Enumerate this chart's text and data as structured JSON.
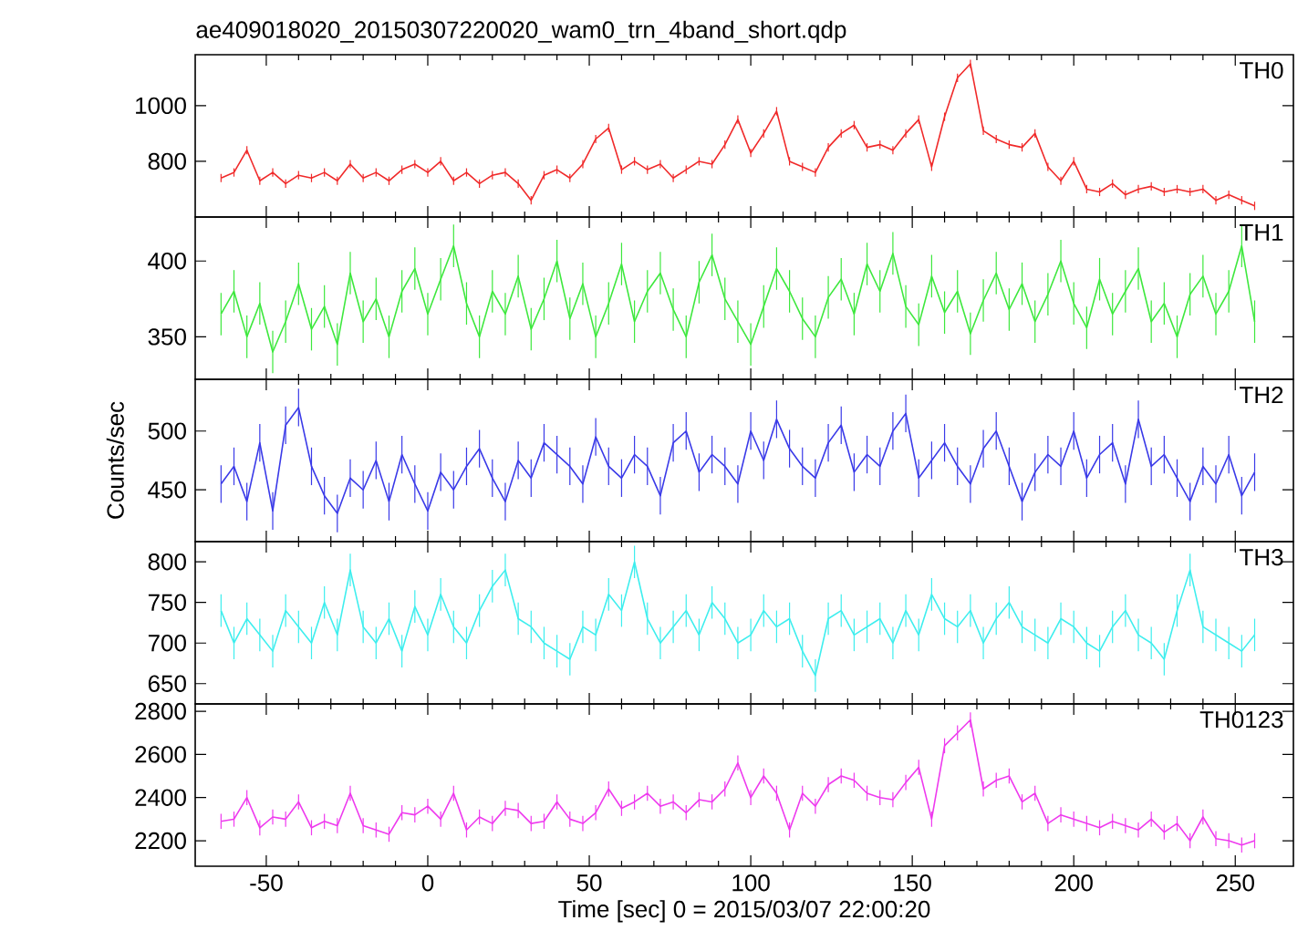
{
  "chart_data": [
    {
      "type": "line",
      "title": "ae409018020_20150307220020_wam0_trn_4band_short.qdp",
      "annotations": [
        "TH0"
      ],
      "color": "#f02a2a",
      "xlim": [
        -72,
        268
      ],
      "xticks": [
        -50,
        0,
        50,
        100,
        150,
        200,
        250
      ],
      "ylim": [
        600,
        1183
      ],
      "yticks": [
        800,
        1000
      ],
      "tick_labels": "y",
      "x": [
        -64,
        -60,
        -56,
        -52,
        -48,
        -44,
        -40,
        -36,
        -32,
        -28,
        -24,
        -20,
        -16,
        -12,
        -8,
        -4,
        0,
        4,
        8,
        12,
        16,
        20,
        24,
        28,
        32,
        36,
        40,
        44,
        48,
        52,
        56,
        60,
        64,
        68,
        72,
        76,
        80,
        84,
        88,
        92,
        96,
        100,
        104,
        108,
        112,
        116,
        120,
        124,
        128,
        132,
        136,
        140,
        144,
        148,
        152,
        156,
        160,
        164,
        168,
        172,
        176,
        180,
        184,
        188,
        192,
        196,
        200,
        204,
        208,
        212,
        216,
        220,
        224,
        228,
        232,
        236,
        240,
        244,
        248,
        252,
        256
      ],
      "values": [
        740,
        760,
        840,
        730,
        760,
        720,
        750,
        740,
        760,
        730,
        790,
        740,
        760,
        730,
        770,
        790,
        760,
        800,
        730,
        760,
        720,
        750,
        760,
        720,
        660,
        750,
        770,
        740,
        790,
        880,
        920,
        770,
        800,
        770,
        790,
        740,
        770,
        800,
        790,
        860,
        950,
        830,
        900,
        980,
        800,
        780,
        760,
        850,
        900,
        930,
        850,
        860,
        840,
        900,
        950,
        780,
        960,
        1100,
        1150,
        910,
        880,
        860,
        850,
        900,
        780,
        730,
        800,
        700,
        690,
        720,
        680,
        700,
        710,
        690,
        700,
        690,
        700,
        660,
        680,
        660,
        640
      ],
      "errors": [
        15,
        15,
        15,
        15,
        15,
        15,
        15,
        15,
        15,
        15,
        15,
        15,
        15,
        15,
        15,
        15,
        15,
        15,
        15,
        15,
        15,
        15,
        15,
        15,
        15,
        15,
        15,
        15,
        15,
        15,
        15,
        15,
        15,
        15,
        15,
        15,
        15,
        15,
        15,
        15,
        15,
        15,
        15,
        15,
        15,
        15,
        15,
        15,
        15,
        15,
        15,
        15,
        15,
        15,
        15,
        15,
        15,
        15,
        15,
        15,
        15,
        15,
        15,
        15,
        15,
        15,
        15,
        15,
        15,
        15,
        15,
        15,
        15,
        15,
        15,
        15,
        15,
        15,
        15,
        15,
        15
      ]
    },
    {
      "type": "line",
      "annotations": [
        "TH1"
      ],
      "color": "#3ee83e",
      "xlim": [
        -72,
        268
      ],
      "xticks": [
        -50,
        0,
        50,
        100,
        150,
        200,
        250
      ],
      "ylim": [
        322,
        429
      ],
      "yticks": [
        350,
        400
      ],
      "tick_labels": "y",
      "x": [
        -64,
        -60,
        -56,
        -52,
        -48,
        -44,
        -40,
        -36,
        -32,
        -28,
        -24,
        -20,
        -16,
        -12,
        -8,
        -4,
        0,
        4,
        8,
        12,
        16,
        20,
        24,
        28,
        32,
        36,
        40,
        44,
        48,
        52,
        56,
        60,
        64,
        68,
        72,
        76,
        80,
        84,
        88,
        92,
        96,
        100,
        104,
        108,
        112,
        116,
        120,
        124,
        128,
        132,
        136,
        140,
        144,
        148,
        152,
        156,
        160,
        164,
        168,
        172,
        176,
        180,
        184,
        188,
        192,
        196,
        200,
        204,
        208,
        212,
        216,
        220,
        224,
        228,
        232,
        236,
        240,
        244,
        248,
        252,
        256
      ],
      "values": [
        365,
        380,
        350,
        372,
        340,
        360,
        385,
        355,
        370,
        345,
        392,
        360,
        375,
        350,
        380,
        395,
        365,
        388,
        410,
        372,
        350,
        380,
        365,
        390,
        355,
        375,
        400,
        362,
        385,
        350,
        372,
        398,
        360,
        380,
        392,
        368,
        350,
        386,
        404,
        375,
        360,
        345,
        370,
        395,
        380,
        362,
        350,
        376,
        388,
        365,
        398,
        380,
        405,
        370,
        358,
        390,
        366,
        380,
        352,
        374,
        392,
        368,
        385,
        360,
        378,
        400,
        372,
        356,
        388,
        365,
        380,
        395,
        360,
        372,
        350,
        378,
        390,
        365,
        380,
        410,
        360
      ],
      "errors": [
        14,
        14,
        14,
        14,
        14,
        14,
        14,
        14,
        14,
        14,
        14,
        14,
        14,
        14,
        14,
        14,
        14,
        14,
        14,
        14,
        14,
        14,
        14,
        14,
        14,
        14,
        14,
        14,
        14,
        14,
        14,
        14,
        14,
        14,
        14,
        14,
        14,
        14,
        14,
        14,
        14,
        14,
        14,
        14,
        14,
        14,
        14,
        14,
        14,
        14,
        14,
        14,
        14,
        14,
        14,
        14,
        14,
        14,
        14,
        14,
        14,
        14,
        14,
        14,
        14,
        14,
        14,
        14,
        14,
        14,
        14,
        14,
        14,
        14,
        14,
        14,
        14,
        14,
        14,
        14,
        14
      ]
    },
    {
      "type": "line",
      "annotations": [
        "TH2"
      ],
      "ylabel": "Counts/sec",
      "color": "#3a3ae8",
      "xlim": [
        -72,
        268
      ],
      "xticks": [
        -50,
        0,
        50,
        100,
        150,
        200,
        250
      ],
      "ylim": [
        406,
        544
      ],
      "yticks": [
        450,
        500
      ],
      "tick_labels": "y",
      "x": [
        -64,
        -60,
        -56,
        -52,
        -48,
        -44,
        -40,
        -36,
        -32,
        -28,
        -24,
        -20,
        -16,
        -12,
        -8,
        -4,
        0,
        4,
        8,
        12,
        16,
        20,
        24,
        28,
        32,
        36,
        40,
        44,
        48,
        52,
        56,
        60,
        64,
        68,
        72,
        76,
        80,
        84,
        88,
        92,
        96,
        100,
        104,
        108,
        112,
        116,
        120,
        124,
        128,
        132,
        136,
        140,
        144,
        148,
        152,
        156,
        160,
        164,
        168,
        172,
        176,
        180,
        184,
        188,
        192,
        196,
        200,
        204,
        208,
        212,
        216,
        220,
        224,
        228,
        232,
        236,
        240,
        244,
        248,
        252,
        256
      ],
      "values": [
        455,
        470,
        440,
        490,
        432,
        505,
        520,
        470,
        445,
        430,
        460,
        450,
        475,
        440,
        480,
        455,
        432,
        465,
        450,
        470,
        485,
        460,
        440,
        475,
        460,
        490,
        480,
        470,
        455,
        495,
        470,
        460,
        480,
        470,
        445,
        490,
        500,
        465,
        480,
        470,
        455,
        500,
        475,
        510,
        485,
        470,
        460,
        490,
        505,
        465,
        480,
        470,
        500,
        515,
        460,
        475,
        490,
        470,
        455,
        485,
        500,
        470,
        440,
        465,
        480,
        470,
        500,
        460,
        480,
        490,
        455,
        510,
        470,
        480,
        460,
        440,
        470,
        455,
        480,
        445,
        465
      ],
      "errors": [
        16,
        16,
        16,
        16,
        16,
        16,
        16,
        16,
        16,
        16,
        16,
        16,
        16,
        16,
        16,
        16,
        16,
        16,
        16,
        16,
        16,
        16,
        16,
        16,
        16,
        16,
        16,
        16,
        16,
        16,
        16,
        16,
        16,
        16,
        16,
        16,
        16,
        16,
        16,
        16,
        16,
        16,
        16,
        16,
        16,
        16,
        16,
        16,
        16,
        16,
        16,
        16,
        16,
        16,
        16,
        16,
        16,
        16,
        16,
        16,
        16,
        16,
        16,
        16,
        16,
        16,
        16,
        16,
        16,
        16,
        16,
        16,
        16,
        16,
        16,
        16,
        16,
        16,
        16,
        16,
        16
      ]
    },
    {
      "type": "line",
      "annotations": [
        "TH3"
      ],
      "color": "#3eeeee",
      "xlim": [
        -72,
        268
      ],
      "xticks": [
        -50,
        0,
        50,
        100,
        150,
        200,
        250
      ],
      "ylim": [
        625,
        825
      ],
      "yticks": [
        650,
        700,
        750,
        800
      ],
      "tick_labels": "y",
      "x": [
        -64,
        -60,
        -56,
        -52,
        -48,
        -44,
        -40,
        -36,
        -32,
        -28,
        -24,
        -20,
        -16,
        -12,
        -8,
        -4,
        0,
        4,
        8,
        12,
        16,
        20,
        24,
        28,
        32,
        36,
        40,
        44,
        48,
        52,
        56,
        60,
        64,
        68,
        72,
        76,
        80,
        84,
        88,
        92,
        96,
        100,
        104,
        108,
        112,
        116,
        120,
        124,
        128,
        132,
        136,
        140,
        144,
        148,
        152,
        156,
        160,
        164,
        168,
        172,
        176,
        180,
        184,
        188,
        192,
        196,
        200,
        204,
        208,
        212,
        216,
        220,
        224,
        228,
        232,
        236,
        240,
        244,
        248,
        252,
        256
      ],
      "values": [
        740,
        700,
        730,
        710,
        690,
        740,
        720,
        700,
        750,
        710,
        790,
        720,
        700,
        730,
        690,
        745,
        710,
        760,
        720,
        700,
        740,
        770,
        790,
        730,
        720,
        700,
        690,
        680,
        720,
        710,
        760,
        740,
        800,
        730,
        700,
        720,
        740,
        710,
        750,
        730,
        700,
        710,
        740,
        720,
        730,
        690,
        660,
        730,
        740,
        710,
        720,
        730,
        700,
        740,
        710,
        760,
        730,
        720,
        740,
        700,
        730,
        750,
        720,
        710,
        700,
        730,
        720,
        700,
        690,
        720,
        740,
        710,
        700,
        680,
        740,
        790,
        720,
        710,
        700,
        690,
        710
      ],
      "errors": [
        20,
        20,
        20,
        20,
        20,
        20,
        20,
        20,
        20,
        20,
        20,
        20,
        20,
        20,
        20,
        20,
        20,
        20,
        20,
        20,
        20,
        20,
        20,
        20,
        20,
        20,
        20,
        20,
        20,
        20,
        20,
        20,
        20,
        20,
        20,
        20,
        20,
        20,
        20,
        20,
        20,
        20,
        20,
        20,
        20,
        20,
        20,
        20,
        20,
        20,
        20,
        20,
        20,
        20,
        20,
        20,
        20,
        20,
        20,
        20,
        20,
        20,
        20,
        20,
        20,
        20,
        20,
        20,
        20,
        20,
        20,
        20,
        20,
        20,
        20,
        20,
        20,
        20,
        20,
        20,
        20
      ]
    },
    {
      "type": "line",
      "annotations": [
        "TH0123"
      ],
      "xlabel": "Time [sec] 0 = 2015/03/07 22:00:20",
      "color": "#ee3aee",
      "xlim": [
        -72,
        268
      ],
      "xticks": [
        -50,
        0,
        50,
        100,
        150,
        200,
        250
      ],
      "ylim": [
        2082,
        2834
      ],
      "yticks": [
        2200,
        2400,
        2600,
        2800
      ],
      "x": [
        -64,
        -60,
        -56,
        -52,
        -48,
        -44,
        -40,
        -36,
        -32,
        -28,
        -24,
        -20,
        -16,
        -12,
        -8,
        -4,
        0,
        4,
        8,
        12,
        16,
        20,
        24,
        28,
        32,
        36,
        40,
        44,
        48,
        52,
        56,
        60,
        64,
        68,
        72,
        76,
        80,
        84,
        88,
        92,
        96,
        100,
        104,
        108,
        112,
        116,
        120,
        124,
        128,
        132,
        136,
        140,
        144,
        148,
        152,
        156,
        160,
        164,
        168,
        172,
        176,
        180,
        184,
        188,
        192,
        196,
        200,
        204,
        208,
        212,
        216,
        220,
        224,
        228,
        232,
        236,
        240,
        244,
        248,
        252,
        256
      ],
      "values": [
        2290,
        2300,
        2400,
        2260,
        2310,
        2300,
        2380,
        2260,
        2290,
        2270,
        2420,
        2270,
        2250,
        2230,
        2330,
        2320,
        2360,
        2300,
        2420,
        2250,
        2310,
        2280,
        2350,
        2340,
        2280,
        2290,
        2380,
        2300,
        2280,
        2330,
        2440,
        2350,
        2380,
        2420,
        2360,
        2380,
        2330,
        2390,
        2380,
        2440,
        2560,
        2400,
        2500,
        2420,
        2250,
        2420,
        2360,
        2460,
        2500,
        2480,
        2420,
        2400,
        2390,
        2470,
        2540,
        2300,
        2640,
        2700,
        2760,
        2440,
        2480,
        2500,
        2380,
        2420,
        2280,
        2320,
        2300,
        2280,
        2260,
        2290,
        2270,
        2250,
        2300,
        2240,
        2280,
        2200,
        2310,
        2210,
        2200,
        2180,
        2200
      ],
      "errors": [
        35,
        35,
        35,
        35,
        35,
        35,
        35,
        35,
        35,
        35,
        35,
        35,
        35,
        35,
        35,
        35,
        35,
        35,
        35,
        35,
        35,
        35,
        35,
        35,
        35,
        35,
        35,
        35,
        35,
        35,
        35,
        35,
        35,
        35,
        35,
        35,
        35,
        35,
        35,
        35,
        35,
        35,
        35,
        35,
        35,
        35,
        35,
        35,
        35,
        35,
        35,
        35,
        35,
        35,
        35,
        35,
        35,
        35,
        35,
        35,
        35,
        35,
        35,
        35,
        35,
        35,
        35,
        35,
        35,
        35,
        35,
        35,
        35,
        35,
        35,
        35,
        35,
        35,
        35,
        35,
        35
      ]
    }
  ]
}
